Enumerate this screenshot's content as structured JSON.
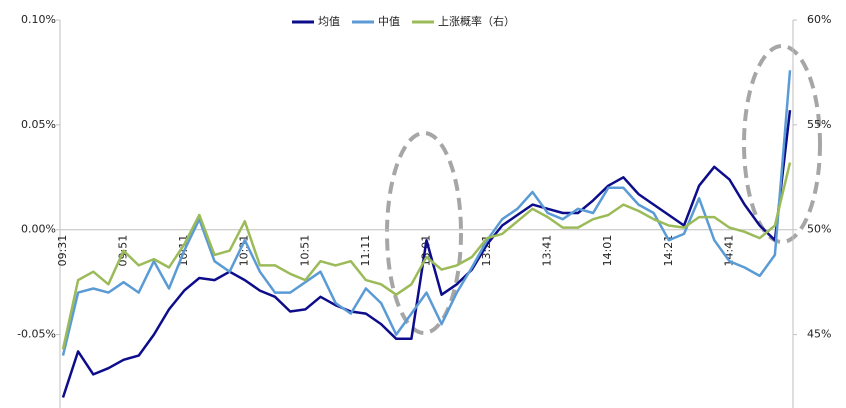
{
  "chart_data": {
    "type": "line",
    "categories": [
      "09:31",
      null,
      null,
      null,
      "09:51",
      null,
      null,
      null,
      "10:11",
      null,
      null,
      null,
      "10:31",
      null,
      null,
      null,
      "10:51",
      null,
      null,
      null,
      "11:11",
      null,
      null,
      null,
      "13:01",
      null,
      null,
      null,
      "13:21",
      null,
      null,
      null,
      "13:41",
      null,
      null,
      null,
      "14:01",
      null,
      null,
      null,
      "14:21",
      null,
      null,
      null,
      "14:41",
      null,
      null,
      null,
      null
    ],
    "series": [
      {
        "name": "均值",
        "color": "#0d0d8c",
        "values": [
          -0.08,
          -0.058,
          -0.069,
          -0.066,
          -0.062,
          -0.06,
          -0.05,
          -0.038,
          -0.029,
          -0.023,
          -0.024,
          -0.02,
          -0.024,
          -0.029,
          -0.032,
          -0.039,
          -0.038,
          -0.032,
          -0.036,
          -0.039,
          -0.04,
          -0.045,
          -0.052,
          -0.052,
          -0.005,
          -0.031,
          -0.026,
          -0.019,
          -0.007,
          0.002,
          0.007,
          0.012,
          0.01,
          0.008,
          0.008,
          0.014,
          0.021,
          0.025,
          0.017,
          0.012,
          0.007,
          0.002,
          0.021,
          0.03,
          0.024,
          0.012,
          0.002,
          -0.005,
          0.057
        ]
      },
      {
        "name": "中值",
        "color": "#5b9bd5",
        "values": [
          -0.06,
          -0.03,
          -0.028,
          -0.03,
          -0.025,
          -0.03,
          -0.015,
          -0.028,
          -0.01,
          0.005,
          -0.015,
          -0.02,
          -0.005,
          -0.02,
          -0.03,
          -0.03,
          -0.025,
          -0.02,
          -0.035,
          -0.04,
          -0.028,
          -0.035,
          -0.05,
          -0.04,
          -0.03,
          -0.045,
          -0.03,
          -0.018,
          -0.005,
          0.005,
          0.01,
          0.018,
          0.008,
          0.005,
          0.01,
          0.008,
          0.02,
          0.02,
          0.012,
          0.008,
          -0.005,
          -0.002,
          0.015,
          -0.005,
          -0.015,
          -0.018,
          -0.022,
          -0.012,
          0.076
        ]
      },
      {
        "name": "上涨概率（右）",
        "color": "#9bbb59",
        "axis": "y2",
        "values": [
          44.3,
          47.6,
          48.0,
          47.4,
          49.0,
          48.3,
          48.6,
          48.2,
          49.3,
          50.7,
          48.8,
          49.0,
          50.4,
          48.3,
          48.3,
          47.9,
          47.6,
          48.5,
          48.3,
          48.5,
          47.6,
          47.4,
          46.9,
          47.4,
          48.7,
          48.1,
          48.3,
          48.7,
          49.6,
          49.8,
          50.4,
          51.0,
          50.6,
          50.1,
          50.1,
          50.5,
          50.7,
          51.2,
          50.9,
          50.5,
          50.2,
          50.1,
          50.6,
          50.6,
          50.1,
          49.9,
          49.6,
          50.2,
          53.2
        ]
      }
    ],
    "ylim": [
      -0.085,
      0.1
    ],
    "yticks": [
      {
        "value": -0.05,
        "label": "-0.05%"
      },
      {
        "value": 0,
        "label": "0.00%"
      },
      {
        "value": 0.05,
        "label": "0.05%"
      },
      {
        "value": 0.1,
        "label": "0.10%"
      }
    ],
    "y2lim": [
      41.5,
      60
    ],
    "y2ticks": [
      {
        "value": 45,
        "label": "45%"
      },
      {
        "value": 50,
        "label": "50%"
      },
      {
        "value": 55,
        "label": "55%"
      },
      {
        "value": 60,
        "label": "60%"
      }
    ],
    "legend": "top"
  }
}
